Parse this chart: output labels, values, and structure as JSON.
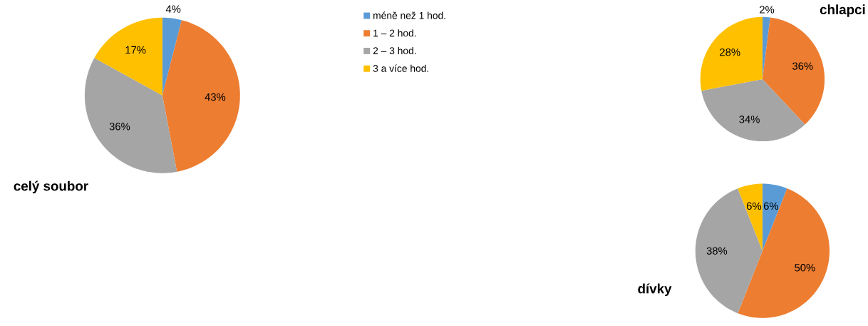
{
  "chart_data": [
    {
      "type": "pie",
      "title": "celý soubor",
      "categories": [
        "méně než 1 hod.",
        "1 – 2 hod.",
        "2 – 3 hod.",
        "3 a více hod."
      ],
      "values": [
        4,
        43,
        36,
        17
      ],
      "value_labels": [
        "4%",
        "43%",
        "36%",
        "17%"
      ],
      "colors": [
        "#5b9bd5",
        "#ed7d31",
        "#a5a5a5",
        "#ffc000"
      ],
      "legend": "right"
    },
    {
      "type": "pie",
      "title": "chlapci",
      "categories": [
        null,
        null,
        null,
        null
      ],
      "values": [
        2,
        36,
        34,
        28
      ],
      "value_labels": [
        "2%",
        "36%",
        "34%",
        "28%"
      ],
      "colors": [
        "#5b9bd5",
        "#ed7d31",
        "#a5a5a5",
        "#ffc000"
      ]
    },
    {
      "type": "pie",
      "title": "dívky",
      "categories": [
        null,
        null,
        null,
        null
      ],
      "values": [
        6,
        50,
        38,
        6
      ],
      "value_labels": [
        "6%",
        "50%",
        "38%",
        "6%"
      ],
      "colors": [
        "#5b9bd5",
        "#ed7d31",
        "#a5a5a5",
        "#ffc000"
      ]
    }
  ]
}
